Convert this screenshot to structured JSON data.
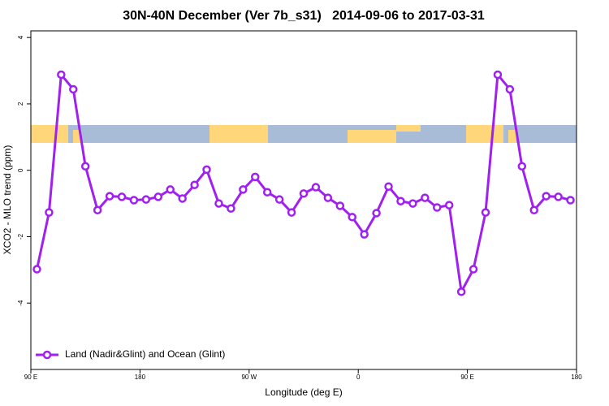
{
  "chart_data": {
    "type": "line",
    "title": "30N-40N December (Ver 7b_s31)   2014-09-06 to 2017-03-31",
    "x_label": "Longitude (deg E)",
    "y_label": "XCO2 - MLO trend (ppm)",
    "x": [
      95,
      105,
      115,
      125,
      135,
      145,
      155,
      165,
      175,
      185,
      195,
      205,
      215,
      225,
      235,
      245,
      255,
      265,
      275,
      285,
      295,
      305,
      315,
      325,
      335,
      345,
      355,
      365,
      375,
      385,
      395,
      405,
      415,
      425,
      435,
      445,
      455,
      465,
      475,
      485,
      495,
      505,
      515,
      525,
      535
    ],
    "series": [
      {
        "name": "Land (Nadir&Glint) and Ocean (Glint)",
        "color": "#a020f0",
        "values": [
          -2.98,
          -1.27,
          2.88,
          2.44,
          0.12,
          -1.2,
          -0.78,
          -0.8,
          -0.9,
          -0.88,
          -0.8,
          -0.58,
          -0.85,
          -0.44,
          0.02,
          -1.0,
          -1.15,
          -0.58,
          -0.2,
          -0.66,
          -0.88,
          -1.27,
          -0.7,
          -0.51,
          -0.83,
          -1.07,
          -1.41,
          -1.93,
          -1.29,
          -0.49,
          -0.93,
          -1.0,
          -0.83,
          -1.12,
          -1.05,
          -3.66,
          -2.98,
          -1.27,
          2.88,
          2.44,
          0.12,
          -1.2,
          -0.78,
          -0.8,
          -0.9
        ]
      }
    ],
    "xlim": [
      90,
      540
    ],
    "xticks": [
      {
        "value": 90,
        "label": "90 E"
      },
      180,
      {
        "value": 270,
        "label": "90 W"
      },
      {
        "value": 360,
        "label": "0"
      },
      {
        "value": 450,
        "label": "90 E"
      },
      {
        "value": 540,
        "label": "180"
      }
    ],
    "ylim": [
      -6,
      4.2
    ],
    "yticks": [
      -4,
      -2,
      0,
      2,
      4
    ],
    "legend": "bottom-left"
  }
}
